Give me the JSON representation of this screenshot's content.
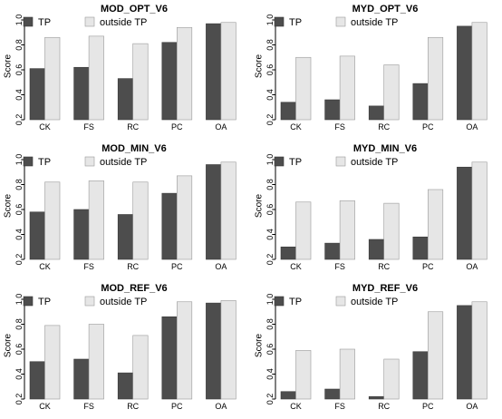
{
  "chart_data": [
    {
      "type": "bar",
      "title": "MOD_OPT_V6",
      "ylabel": "Score",
      "categories": [
        "CK",
        "FS",
        "RC",
        "PC",
        "OA"
      ],
      "ylim": [
        0.2,
        1.0
      ],
      "yticks": [
        "0.2",
        "0.4",
        "0.6",
        "0.8",
        "1.0"
      ],
      "legend_position": "top",
      "series": [
        {
          "name": "TP",
          "color": "#4d4d4d",
          "values": [
            0.61,
            0.62,
            0.53,
            0.82,
            0.97
          ]
        },
        {
          "name": "outside TP",
          "color": "#e6e6e6",
          "values": [
            0.86,
            0.87,
            0.81,
            0.94,
            0.98
          ]
        }
      ]
    },
    {
      "type": "bar",
      "title": "MYD_OPT_V6",
      "ylabel": "Score",
      "categories": [
        "CK",
        "FS",
        "RC",
        "PC",
        "OA"
      ],
      "ylim": [
        0.2,
        1.0
      ],
      "yticks": [
        "0.2",
        "0.4",
        "0.6",
        "0.8",
        "1.0"
      ],
      "legend_position": "top",
      "series": [
        {
          "name": "TP",
          "color": "#4d4d4d",
          "values": [
            0.34,
            0.36,
            0.31,
            0.49,
            0.95
          ]
        },
        {
          "name": "outside TP",
          "color": "#e6e6e6",
          "values": [
            0.7,
            0.71,
            0.64,
            0.86,
            0.98
          ]
        }
      ]
    },
    {
      "type": "bar",
      "title": "MOD_MIN_V6",
      "ylabel": "Score",
      "categories": [
        "CK",
        "FS",
        "RC",
        "PC",
        "OA"
      ],
      "ylim": [
        0.2,
        1.0
      ],
      "yticks": [
        "0.2",
        "0.4",
        "0.6",
        "0.8",
        "1.0"
      ],
      "legend_position": "top",
      "series": [
        {
          "name": "TP",
          "color": "#4d4d4d",
          "values": [
            0.58,
            0.6,
            0.56,
            0.73,
            0.96
          ]
        },
        {
          "name": "outside TP",
          "color": "#e6e6e6",
          "values": [
            0.82,
            0.83,
            0.82,
            0.87,
            0.98
          ]
        }
      ]
    },
    {
      "type": "bar",
      "title": "MYD_MIN_V6",
      "ylabel": "Score",
      "categories": [
        "CK",
        "FS",
        "RC",
        "PC",
        "OA"
      ],
      "ylim": [
        0.2,
        1.0
      ],
      "yticks": [
        "0.2",
        "0.4",
        "0.6",
        "0.8",
        "1.0"
      ],
      "legend_position": "top",
      "series": [
        {
          "name": "TP",
          "color": "#4d4d4d",
          "values": [
            0.3,
            0.33,
            0.36,
            0.38,
            0.94
          ]
        },
        {
          "name": "outside TP",
          "color": "#e6e6e6",
          "values": [
            0.66,
            0.67,
            0.65,
            0.76,
            0.98
          ]
        }
      ]
    },
    {
      "type": "bar",
      "title": "MOD_REF_V6",
      "ylabel": "Score",
      "categories": [
        "CK",
        "FS",
        "RC",
        "PC",
        "OA"
      ],
      "ylim": [
        0.2,
        1.0
      ],
      "yticks": [
        "0.2",
        "0.4",
        "0.6",
        "0.8",
        "1.0"
      ],
      "legend_position": "top",
      "series": [
        {
          "name": "TP",
          "color": "#4d4d4d",
          "values": [
            0.5,
            0.52,
            0.41,
            0.86,
            0.97
          ]
        },
        {
          "name": "outside TP",
          "color": "#e6e6e6",
          "values": [
            0.79,
            0.8,
            0.71,
            0.98,
            0.99
          ]
        }
      ]
    },
    {
      "type": "bar",
      "title": "MYD_REF_V6",
      "ylabel": "Score",
      "categories": [
        "CK",
        "FS",
        "RC",
        "PC",
        "OA"
      ],
      "ylim": [
        0.2,
        1.0
      ],
      "yticks": [
        "0.2",
        "0.4",
        "0.6",
        "0.8",
        "1.0"
      ],
      "legend_position": "top",
      "series": [
        {
          "name": "TP",
          "color": "#4d4d4d",
          "values": [
            0.26,
            0.28,
            0.22,
            0.58,
            0.95
          ]
        },
        {
          "name": "outside TP",
          "color": "#e6e6e6",
          "values": [
            0.59,
            0.6,
            0.52,
            0.9,
            0.98
          ]
        }
      ]
    }
  ]
}
